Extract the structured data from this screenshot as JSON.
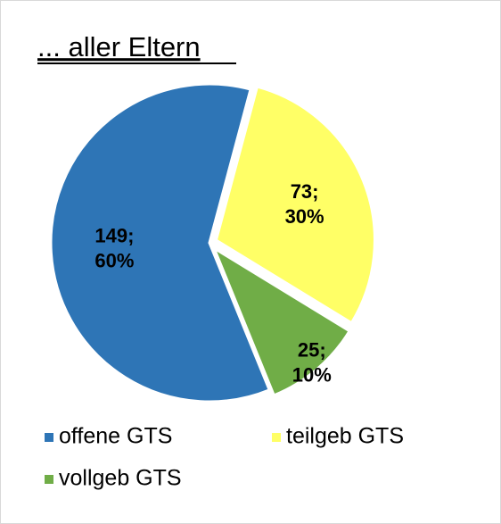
{
  "chart_data": {
    "type": "pie",
    "title": "... aller Eltern",
    "categories": [
      "offene GTS",
      "teilgeb GTS",
      "vollgeb GTS"
    ],
    "values": [
      149,
      73,
      25
    ],
    "value_labels": [
      "149;",
      "73;",
      "25;"
    ],
    "percents": [
      60,
      30,
      10
    ],
    "percent_labels": [
      "60%",
      "30%",
      "10%"
    ],
    "colors": [
      "#2e75b6",
      "#ffff66",
      "#70ad47"
    ],
    "legend": "bottom"
  }
}
